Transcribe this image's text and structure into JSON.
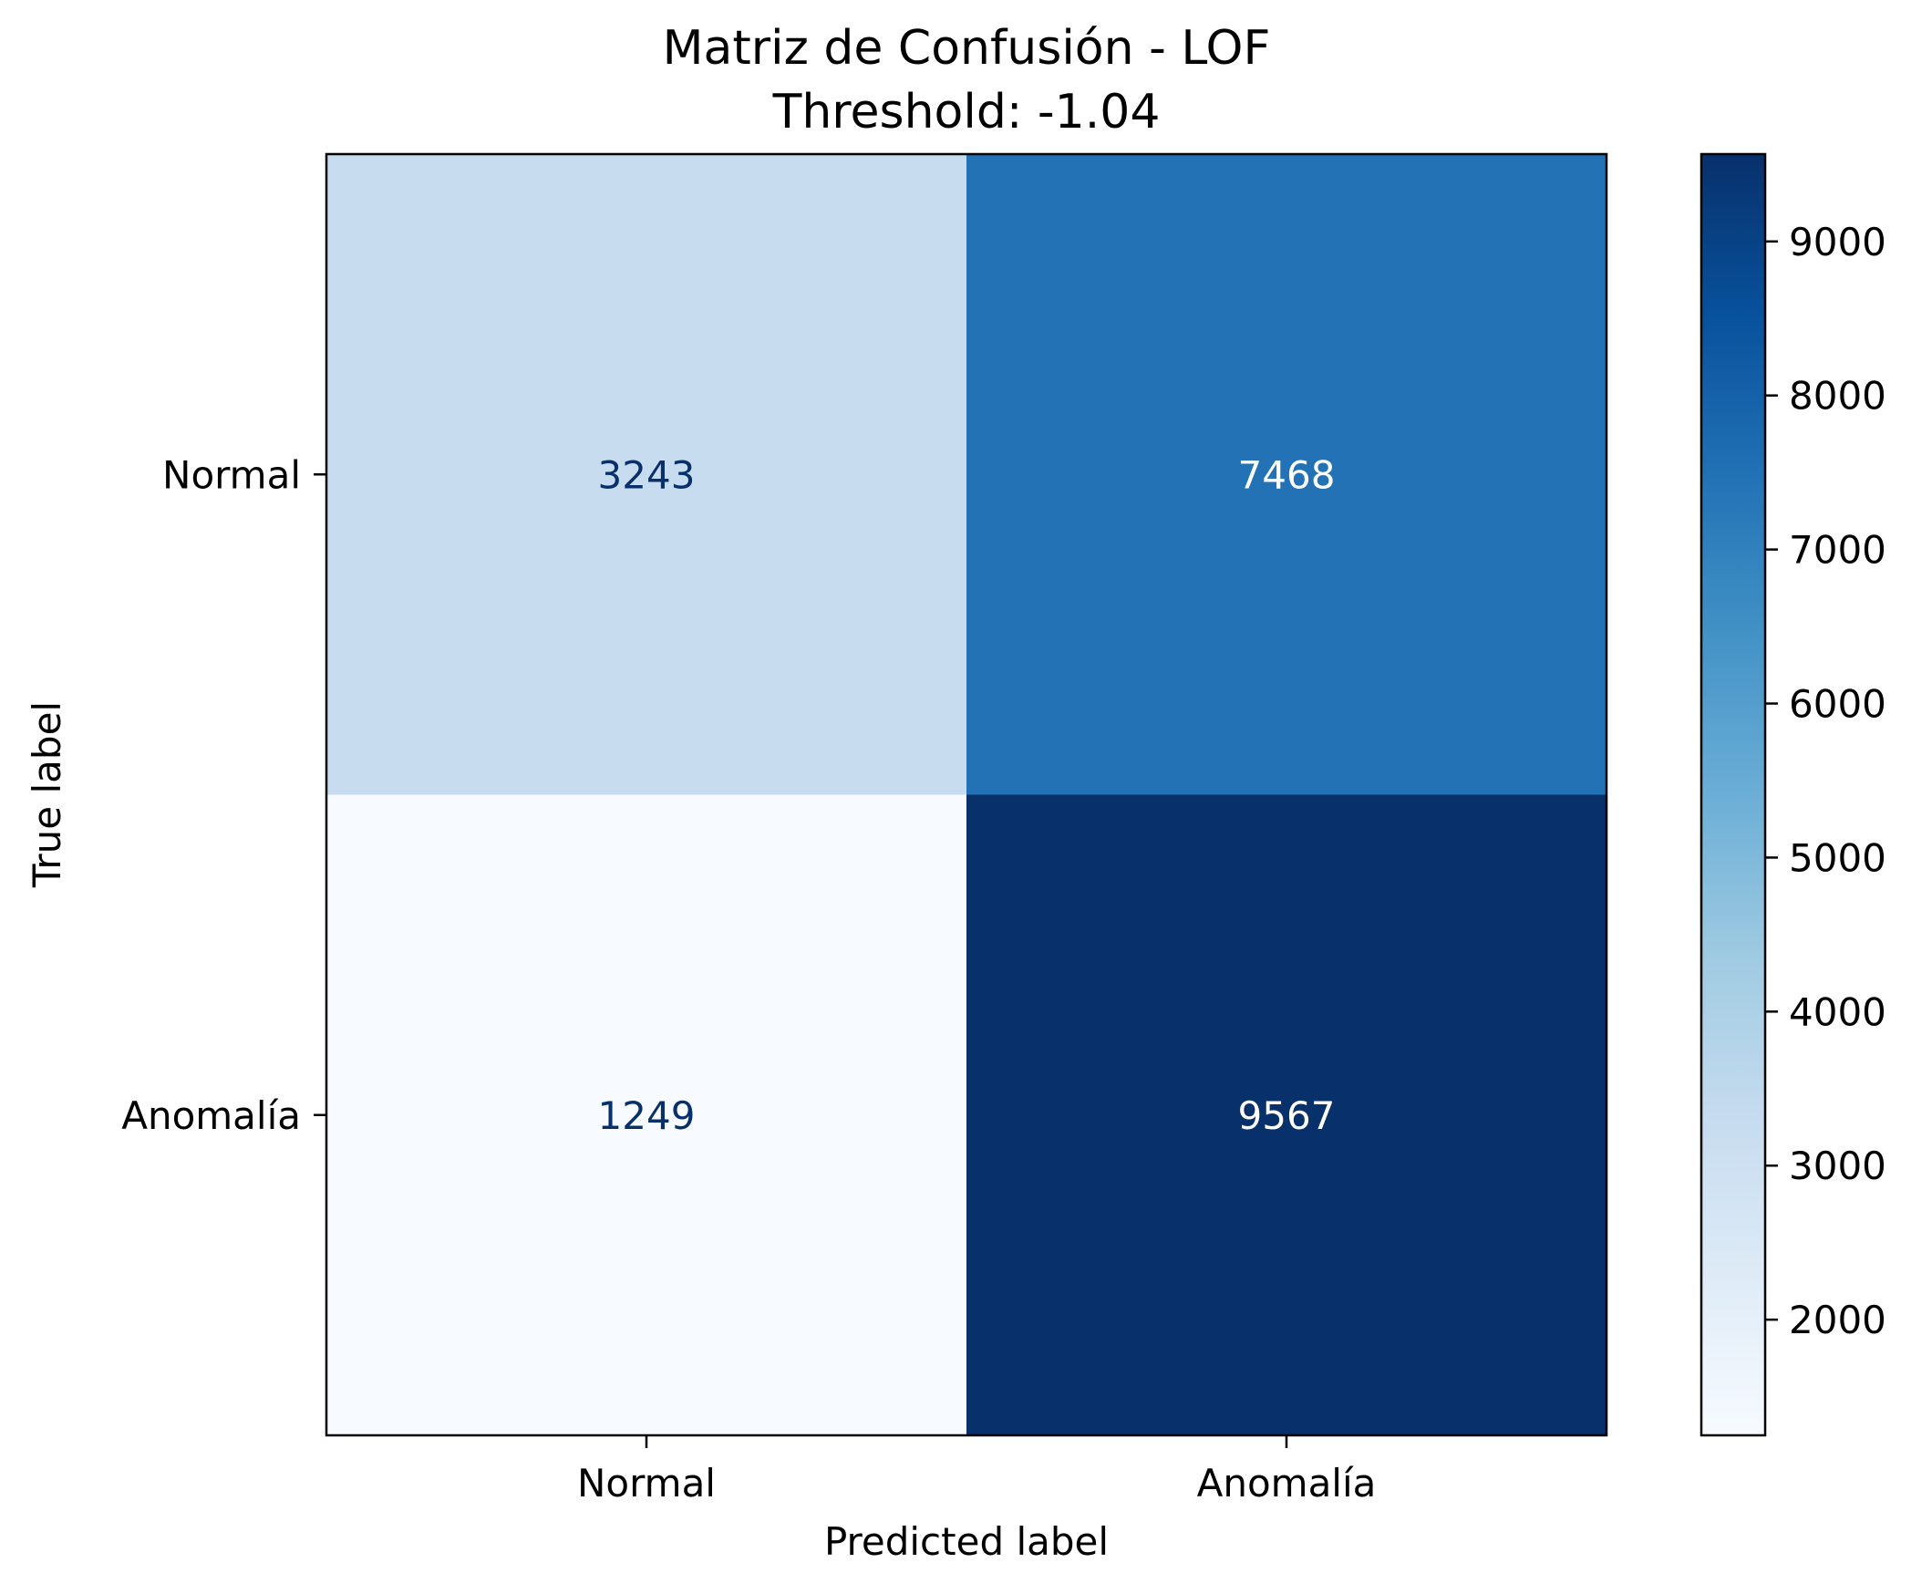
{
  "chart_data": {
    "type": "heatmap",
    "title": "Matriz de Confusión - LOF",
    "subtitle": "Threshold: -1.04",
    "xlabel": "Predicted label",
    "ylabel": "True label",
    "x_categories": [
      "Normal",
      "Anomalía"
    ],
    "y_categories": [
      "Normal",
      "Anomalía"
    ],
    "values": [
      [
        3243,
        7468
      ],
      [
        1249,
        9567
      ]
    ],
    "colormap": "Blues",
    "colorbar": {
      "range": [
        1249,
        9567
      ],
      "ticks": [
        2000,
        3000,
        4000,
        5000,
        6000,
        7000,
        8000,
        9000
      ]
    },
    "colors": {
      "light_text": "#ffffff",
      "dark_text": "#08306b",
      "axis": "#000000"
    }
  }
}
